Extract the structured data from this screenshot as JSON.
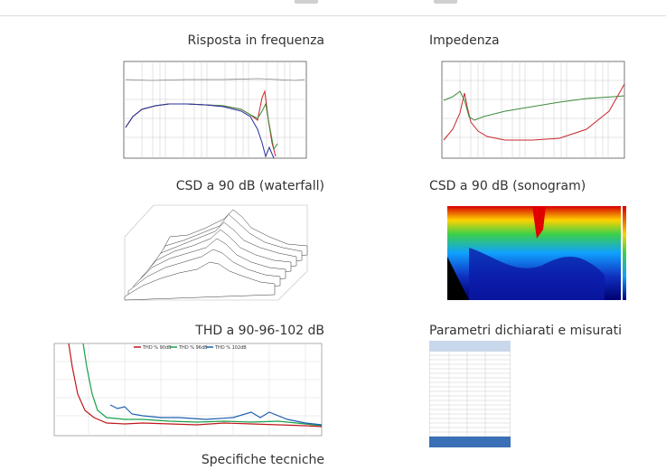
{
  "captions": {
    "freq_response": "Risposta in frequenza",
    "impedance": "Impedenza",
    "csd_waterfall": "CSD a 90 dB (waterfall)",
    "csd_sonogram": "CSD a 90 dB (sonogram)",
    "thd": "THD a 90-96-102 dB",
    "params": "Parametri dichiarati e misurati",
    "specs": "Specifiche tecniche"
  },
  "thd_legend": [
    "THD % 90dB",
    "THD % 96dB",
    "THD % 102dB"
  ],
  "colors": {
    "thd_90": "#c0161c",
    "thd_96": "#1aa04a",
    "thd_102": "#1f5fb0",
    "freq_red": "#d42020",
    "freq_green": "#3a8a3a",
    "freq_blue": "#2a2fa0",
    "imp_red": "#c8282d",
    "imp_green": "#3c8c3c"
  }
}
